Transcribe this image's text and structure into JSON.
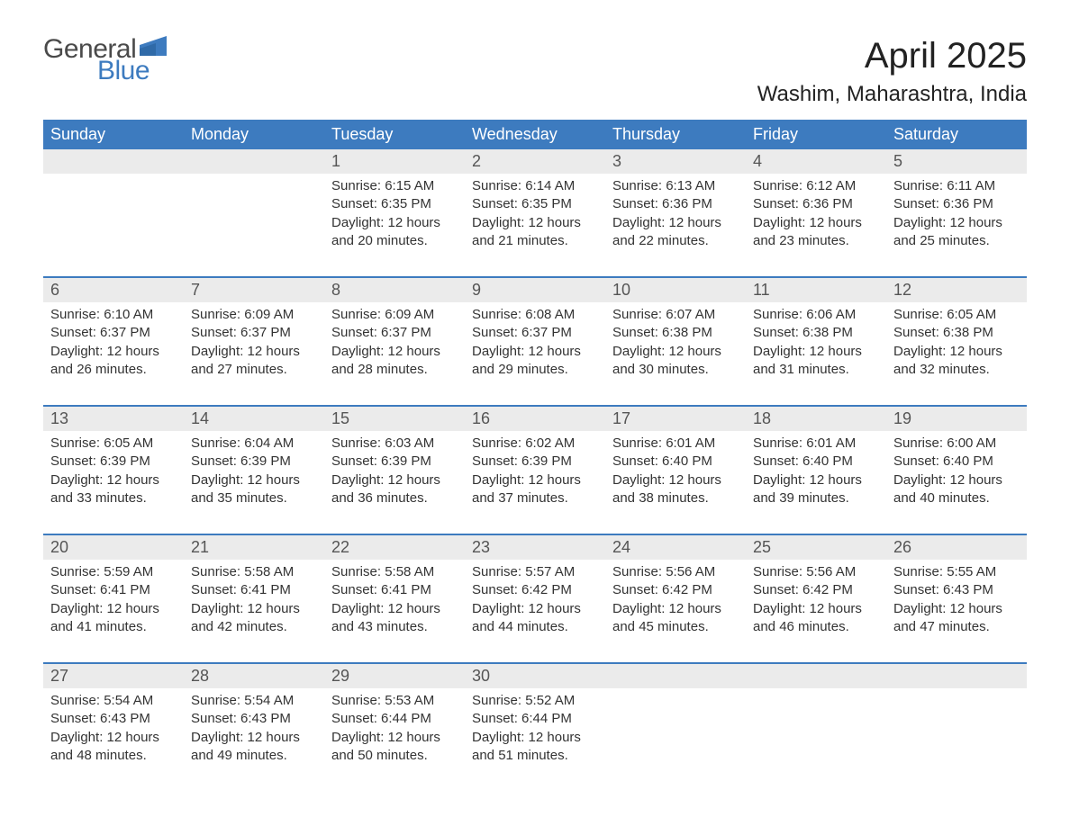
{
  "logo": {
    "general": "General",
    "blue": "Blue",
    "shape_color": "#3d7bbf"
  },
  "title": "April 2025",
  "location": "Washim, Maharashtra, India",
  "colors": {
    "header_bg": "#3d7bbf",
    "header_text": "#ffffff",
    "daynum_bg": "#ebebeb",
    "week_border": "#3d7bbf",
    "body_text": "#333333",
    "page_bg": "#ffffff"
  },
  "typography": {
    "title_fontsize": 40,
    "location_fontsize": 24,
    "header_fontsize": 18,
    "daynum_fontsize": 18,
    "body_fontsize": 15
  },
  "weekdays": [
    "Sunday",
    "Monday",
    "Tuesday",
    "Wednesday",
    "Thursday",
    "Friday",
    "Saturday"
  ],
  "weeks": [
    [
      {
        "n": "",
        "sunrise": "",
        "sunset": "",
        "daylight1": "",
        "daylight2": ""
      },
      {
        "n": "",
        "sunrise": "",
        "sunset": "",
        "daylight1": "",
        "daylight2": ""
      },
      {
        "n": "1",
        "sunrise": "Sunrise: 6:15 AM",
        "sunset": "Sunset: 6:35 PM",
        "daylight1": "Daylight: 12 hours",
        "daylight2": "and 20 minutes."
      },
      {
        "n": "2",
        "sunrise": "Sunrise: 6:14 AM",
        "sunset": "Sunset: 6:35 PM",
        "daylight1": "Daylight: 12 hours",
        "daylight2": "and 21 minutes."
      },
      {
        "n": "3",
        "sunrise": "Sunrise: 6:13 AM",
        "sunset": "Sunset: 6:36 PM",
        "daylight1": "Daylight: 12 hours",
        "daylight2": "and 22 minutes."
      },
      {
        "n": "4",
        "sunrise": "Sunrise: 6:12 AM",
        "sunset": "Sunset: 6:36 PM",
        "daylight1": "Daylight: 12 hours",
        "daylight2": "and 23 minutes."
      },
      {
        "n": "5",
        "sunrise": "Sunrise: 6:11 AM",
        "sunset": "Sunset: 6:36 PM",
        "daylight1": "Daylight: 12 hours",
        "daylight2": "and 25 minutes."
      }
    ],
    [
      {
        "n": "6",
        "sunrise": "Sunrise: 6:10 AM",
        "sunset": "Sunset: 6:37 PM",
        "daylight1": "Daylight: 12 hours",
        "daylight2": "and 26 minutes."
      },
      {
        "n": "7",
        "sunrise": "Sunrise: 6:09 AM",
        "sunset": "Sunset: 6:37 PM",
        "daylight1": "Daylight: 12 hours",
        "daylight2": "and 27 minutes."
      },
      {
        "n": "8",
        "sunrise": "Sunrise: 6:09 AM",
        "sunset": "Sunset: 6:37 PM",
        "daylight1": "Daylight: 12 hours",
        "daylight2": "and 28 minutes."
      },
      {
        "n": "9",
        "sunrise": "Sunrise: 6:08 AM",
        "sunset": "Sunset: 6:37 PM",
        "daylight1": "Daylight: 12 hours",
        "daylight2": "and 29 minutes."
      },
      {
        "n": "10",
        "sunrise": "Sunrise: 6:07 AM",
        "sunset": "Sunset: 6:38 PM",
        "daylight1": "Daylight: 12 hours",
        "daylight2": "and 30 minutes."
      },
      {
        "n": "11",
        "sunrise": "Sunrise: 6:06 AM",
        "sunset": "Sunset: 6:38 PM",
        "daylight1": "Daylight: 12 hours",
        "daylight2": "and 31 minutes."
      },
      {
        "n": "12",
        "sunrise": "Sunrise: 6:05 AM",
        "sunset": "Sunset: 6:38 PM",
        "daylight1": "Daylight: 12 hours",
        "daylight2": "and 32 minutes."
      }
    ],
    [
      {
        "n": "13",
        "sunrise": "Sunrise: 6:05 AM",
        "sunset": "Sunset: 6:39 PM",
        "daylight1": "Daylight: 12 hours",
        "daylight2": "and 33 minutes."
      },
      {
        "n": "14",
        "sunrise": "Sunrise: 6:04 AM",
        "sunset": "Sunset: 6:39 PM",
        "daylight1": "Daylight: 12 hours",
        "daylight2": "and 35 minutes."
      },
      {
        "n": "15",
        "sunrise": "Sunrise: 6:03 AM",
        "sunset": "Sunset: 6:39 PM",
        "daylight1": "Daylight: 12 hours",
        "daylight2": "and 36 minutes."
      },
      {
        "n": "16",
        "sunrise": "Sunrise: 6:02 AM",
        "sunset": "Sunset: 6:39 PM",
        "daylight1": "Daylight: 12 hours",
        "daylight2": "and 37 minutes."
      },
      {
        "n": "17",
        "sunrise": "Sunrise: 6:01 AM",
        "sunset": "Sunset: 6:40 PM",
        "daylight1": "Daylight: 12 hours",
        "daylight2": "and 38 minutes."
      },
      {
        "n": "18",
        "sunrise": "Sunrise: 6:01 AM",
        "sunset": "Sunset: 6:40 PM",
        "daylight1": "Daylight: 12 hours",
        "daylight2": "and 39 minutes."
      },
      {
        "n": "19",
        "sunrise": "Sunrise: 6:00 AM",
        "sunset": "Sunset: 6:40 PM",
        "daylight1": "Daylight: 12 hours",
        "daylight2": "and 40 minutes."
      }
    ],
    [
      {
        "n": "20",
        "sunrise": "Sunrise: 5:59 AM",
        "sunset": "Sunset: 6:41 PM",
        "daylight1": "Daylight: 12 hours",
        "daylight2": "and 41 minutes."
      },
      {
        "n": "21",
        "sunrise": "Sunrise: 5:58 AM",
        "sunset": "Sunset: 6:41 PM",
        "daylight1": "Daylight: 12 hours",
        "daylight2": "and 42 minutes."
      },
      {
        "n": "22",
        "sunrise": "Sunrise: 5:58 AM",
        "sunset": "Sunset: 6:41 PM",
        "daylight1": "Daylight: 12 hours",
        "daylight2": "and 43 minutes."
      },
      {
        "n": "23",
        "sunrise": "Sunrise: 5:57 AM",
        "sunset": "Sunset: 6:42 PM",
        "daylight1": "Daylight: 12 hours",
        "daylight2": "and 44 minutes."
      },
      {
        "n": "24",
        "sunrise": "Sunrise: 5:56 AM",
        "sunset": "Sunset: 6:42 PM",
        "daylight1": "Daylight: 12 hours",
        "daylight2": "and 45 minutes."
      },
      {
        "n": "25",
        "sunrise": "Sunrise: 5:56 AM",
        "sunset": "Sunset: 6:42 PM",
        "daylight1": "Daylight: 12 hours",
        "daylight2": "and 46 minutes."
      },
      {
        "n": "26",
        "sunrise": "Sunrise: 5:55 AM",
        "sunset": "Sunset: 6:43 PM",
        "daylight1": "Daylight: 12 hours",
        "daylight2": "and 47 minutes."
      }
    ],
    [
      {
        "n": "27",
        "sunrise": "Sunrise: 5:54 AM",
        "sunset": "Sunset: 6:43 PM",
        "daylight1": "Daylight: 12 hours",
        "daylight2": "and 48 minutes."
      },
      {
        "n": "28",
        "sunrise": "Sunrise: 5:54 AM",
        "sunset": "Sunset: 6:43 PM",
        "daylight1": "Daylight: 12 hours",
        "daylight2": "and 49 minutes."
      },
      {
        "n": "29",
        "sunrise": "Sunrise: 5:53 AM",
        "sunset": "Sunset: 6:44 PM",
        "daylight1": "Daylight: 12 hours",
        "daylight2": "and 50 minutes."
      },
      {
        "n": "30",
        "sunrise": "Sunrise: 5:52 AM",
        "sunset": "Sunset: 6:44 PM",
        "daylight1": "Daylight: 12 hours",
        "daylight2": "and 51 minutes."
      },
      {
        "n": "",
        "sunrise": "",
        "sunset": "",
        "daylight1": "",
        "daylight2": ""
      },
      {
        "n": "",
        "sunrise": "",
        "sunset": "",
        "daylight1": "",
        "daylight2": ""
      },
      {
        "n": "",
        "sunrise": "",
        "sunset": "",
        "daylight1": "",
        "daylight2": ""
      }
    ]
  ]
}
